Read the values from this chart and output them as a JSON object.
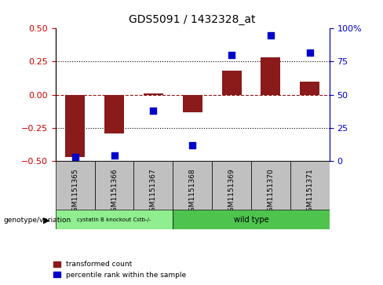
{
  "title": "GDS5091 / 1432328_at",
  "samples": [
    "GSM1151365",
    "GSM1151366",
    "GSM1151367",
    "GSM1151368",
    "GSM1151369",
    "GSM1151370",
    "GSM1151371"
  ],
  "transformed_count": [
    -0.47,
    -0.29,
    0.01,
    -0.13,
    0.18,
    0.28,
    0.1
  ],
  "percentile_rank": [
    3,
    4,
    38,
    12,
    80,
    95,
    82
  ],
  "ylim_left": [
    -0.5,
    0.5
  ],
  "ylim_right": [
    0,
    100
  ],
  "yticks_left": [
    -0.5,
    -0.25,
    0,
    0.25,
    0.5
  ],
  "yticks_right": [
    0,
    25,
    50,
    75,
    100
  ],
  "hlines_dotted": [
    -0.25,
    0.25
  ],
  "hline_dashed": 0,
  "bar_color": "#8B1A1A",
  "scatter_color": "#0000CC",
  "bar_width": 0.5,
  "scatter_size": 35,
  "group1_indices": [
    0,
    1,
    2
  ],
  "group2_indices": [
    3,
    4,
    5,
    6
  ],
  "group1_label": "cystatin B knockout Cstb-/-",
  "group2_label": "wild type",
  "group1_color": "#90EE90",
  "group2_color": "#4EC34E",
  "legend_red_label": "transformed count",
  "legend_blue_label": "percentile rank within the sample",
  "ylabel_left_color": "#CC0000",
  "ylabel_right_color": "#0000CC",
  "background_color": "#ffffff",
  "xtick_bg_color": "#C0C0C0",
  "genotype_label": "genotype/variation"
}
